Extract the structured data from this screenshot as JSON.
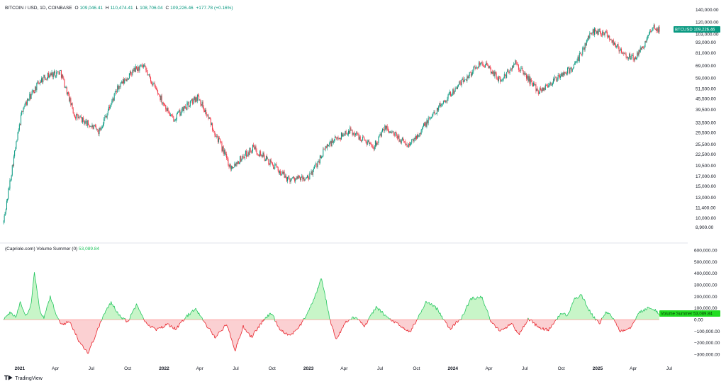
{
  "header": {
    "symbol": "BITCOIN / USD, 1D, COINBASE",
    "open_label": "O",
    "open": "109,046.41",
    "high_label": "H",
    "high": "110,474.41",
    "low_label": "L",
    "low": "108,706.04",
    "close_label": "C",
    "close": "109,226.46",
    "change": "+177.78 (+0.16%)"
  },
  "indicator": {
    "title": "(Capriole.com) Volume Summer (0)",
    "value": "53,089.84"
  },
  "price_tag": {
    "label": "BTCUSD",
    "value": "109,226.46"
  },
  "volume_tag": {
    "label": "Volume Summer",
    "value": "53,089.84"
  },
  "brand": {
    "name": "TradingView"
  },
  "colors": {
    "up": "#089981",
    "down": "#f23645",
    "pos_line": "#22c55e",
    "pos_fill": "#c8f5c8",
    "neg_line": "#e8232b",
    "neg_fill": "#fbd0d2"
  },
  "chart_data": [
    {
      "type": "candlestick",
      "title": "BITCOIN / USD, 1D, COINBASE",
      "scale": "log",
      "ylim": [
        8200,
        145000
      ],
      "y_ticks": [
        "140,000.00",
        "120,000.00",
        "103,000.00",
        "93,000.00",
        "81,000.00",
        "69,000.00",
        "59,000.00",
        "51,500.00",
        "45,500.00",
        "39,500.00",
        "33,500.00",
        "29,500.00",
        "25,500.00",
        "22,500.00",
        "19,500.00",
        "17,000.00",
        "15,000.00",
        "13,000.00",
        "11,400.00",
        "10,000.00",
        "8,900.00"
      ],
      "x_ticks": [
        {
          "label": "2021",
          "year": true
        },
        {
          "label": "Apr"
        },
        {
          "label": "Jul"
        },
        {
          "label": "Oct"
        },
        {
          "label": "2022",
          "year": true
        },
        {
          "label": "Apr"
        },
        {
          "label": "Jul"
        },
        {
          "label": "Oct"
        },
        {
          "label": "2023",
          "year": true
        },
        {
          "label": "Apr"
        },
        {
          "label": "Jul"
        },
        {
          "label": "Oct"
        },
        {
          "label": "2024",
          "year": true
        },
        {
          "label": "Apr"
        },
        {
          "label": "Jul"
        },
        {
          "label": "Oct"
        },
        {
          "label": "2025",
          "year": true
        },
        {
          "label": "Apr"
        },
        {
          "label": "Jul"
        }
      ],
      "x_range": [
        "2020-11-21",
        "2025-06-06"
      ],
      "close_path": [
        [
          "2020-11-21",
          9500
        ],
        [
          "2020-12-16",
          21000
        ],
        [
          "2021-01-08",
          40000
        ],
        [
          "2021-02-21",
          57000
        ],
        [
          "2021-03-13",
          61000
        ],
        [
          "2021-04-14",
          64000
        ],
        [
          "2021-05-19",
          37000
        ],
        [
          "2021-07-20",
          30000
        ],
        [
          "2021-09-06",
          52000
        ],
        [
          "2021-10-20",
          66000
        ],
        [
          "2021-11-10",
          68000
        ],
        [
          "2022-01-22",
          35000
        ],
        [
          "2022-03-28",
          47000
        ],
        [
          "2022-05-12",
          29000
        ],
        [
          "2022-06-18",
          19000
        ],
        [
          "2022-08-15",
          24500
        ],
        [
          "2022-11-09",
          16500
        ],
        [
          "2023-01-01",
          16500
        ],
        [
          "2023-02-16",
          25000
        ],
        [
          "2023-04-14",
          30500
        ],
        [
          "2023-06-15",
          25000
        ],
        [
          "2023-07-14",
          31500
        ],
        [
          "2023-09-11",
          25000
        ],
        [
          "2023-12-08",
          44000
        ],
        [
          "2024-03-14",
          73000
        ],
        [
          "2024-05-01",
          57000
        ],
        [
          "2024-06-07",
          71000
        ],
        [
          "2024-08-05",
          50000
        ],
        [
          "2024-11-05",
          69000
        ],
        [
          "2024-12-17",
          107000
        ],
        [
          "2025-01-20",
          106000
        ],
        [
          "2025-03-10",
          78000
        ],
        [
          "2025-04-08",
          76000
        ],
        [
          "2025-05-22",
          111000
        ],
        [
          "2025-06-06",
          109226
        ]
      ]
    },
    {
      "type": "area",
      "title": "(Capriole.com) Volume Summer (0)",
      "ylim": [
        -330000,
        620000
      ],
      "y_ticks": [
        "600,000.00",
        "500,000.00",
        "400,000.00",
        "300,000.00",
        "200,000.00",
        "100,000.00",
        "0.00",
        "−100,000.00",
        "−200,000.00",
        "−300,000.00"
      ],
      "baseline": 0,
      "series_path": [
        [
          "2020-11-21",
          0
        ],
        [
          "2020-12-06",
          60000
        ],
        [
          "2020-12-22",
          20000
        ],
        [
          "2021-01-02",
          150000
        ],
        [
          "2021-01-17",
          40000
        ],
        [
          "2021-01-29",
          120000
        ],
        [
          "2021-02-07",
          420000
        ],
        [
          "2021-02-20",
          90000
        ],
        [
          "2021-03-03",
          10000
        ],
        [
          "2021-03-19",
          200000
        ],
        [
          "2021-04-04",
          30000
        ],
        [
          "2021-04-15",
          -40000
        ],
        [
          "2021-05-08",
          -20000
        ],
        [
          "2021-05-30",
          -180000
        ],
        [
          "2021-06-23",
          -290000
        ],
        [
          "2021-07-13",
          -120000
        ],
        [
          "2021-08-01",
          40000
        ],
        [
          "2021-08-20",
          150000
        ],
        [
          "2021-09-12",
          30000
        ],
        [
          "2021-10-01",
          -20000
        ],
        [
          "2021-10-24",
          140000
        ],
        [
          "2021-11-16",
          -30000
        ],
        [
          "2021-12-13",
          -90000
        ],
        [
          "2022-01-10",
          -40000
        ],
        [
          "2022-01-31",
          -80000
        ],
        [
          "2022-02-28",
          30000
        ],
        [
          "2022-03-21",
          100000
        ],
        [
          "2022-04-11",
          -20000
        ],
        [
          "2022-05-10",
          -150000
        ],
        [
          "2022-06-09",
          -40000
        ],
        [
          "2022-06-29",
          -270000
        ],
        [
          "2022-07-20",
          -60000
        ],
        [
          "2022-08-10",
          -150000
        ],
        [
          "2022-09-08",
          -10000
        ],
        [
          "2022-09-29",
          60000
        ],
        [
          "2022-10-20",
          -80000
        ],
        [
          "2022-11-15",
          -140000
        ],
        [
          "2022-12-14",
          -40000
        ],
        [
          "2023-01-13",
          160000
        ],
        [
          "2023-02-03",
          360000
        ],
        [
          "2023-02-23",
          20000
        ],
        [
          "2023-03-11",
          -170000
        ],
        [
          "2023-04-06",
          -20000
        ],
        [
          "2023-05-01",
          30000
        ],
        [
          "2023-05-23",
          -60000
        ],
        [
          "2023-06-21",
          110000
        ],
        [
          "2023-07-19",
          20000
        ],
        [
          "2023-08-14",
          -40000
        ],
        [
          "2023-09-14",
          -110000
        ],
        [
          "2023-10-07",
          30000
        ],
        [
          "2023-10-27",
          160000
        ],
        [
          "2023-11-23",
          90000
        ],
        [
          "2023-12-25",
          -80000
        ],
        [
          "2024-01-24",
          20000
        ],
        [
          "2024-02-15",
          180000
        ],
        [
          "2024-03-14",
          200000
        ],
        [
          "2024-04-08",
          -30000
        ],
        [
          "2024-05-01",
          -100000
        ],
        [
          "2024-05-28",
          -30000
        ],
        [
          "2024-06-16",
          -130000
        ],
        [
          "2024-07-10",
          10000
        ],
        [
          "2024-08-05",
          -70000
        ],
        [
          "2024-08-30",
          -90000
        ],
        [
          "2024-09-29",
          50000
        ],
        [
          "2024-10-18",
          40000
        ],
        [
          "2024-11-03",
          180000
        ],
        [
          "2024-11-21",
          210000
        ],
        [
          "2024-12-14",
          60000
        ],
        [
          "2025-01-05",
          -40000
        ],
        [
          "2025-01-22",
          70000
        ],
        [
          "2025-02-10",
          10000
        ],
        [
          "2025-02-27",
          -100000
        ],
        [
          "2025-03-24",
          -70000
        ],
        [
          "2025-04-15",
          60000
        ],
        [
          "2025-05-08",
          100000
        ],
        [
          "2025-05-28",
          80000
        ],
        [
          "2025-06-06",
          53089.84
        ]
      ]
    }
  ]
}
